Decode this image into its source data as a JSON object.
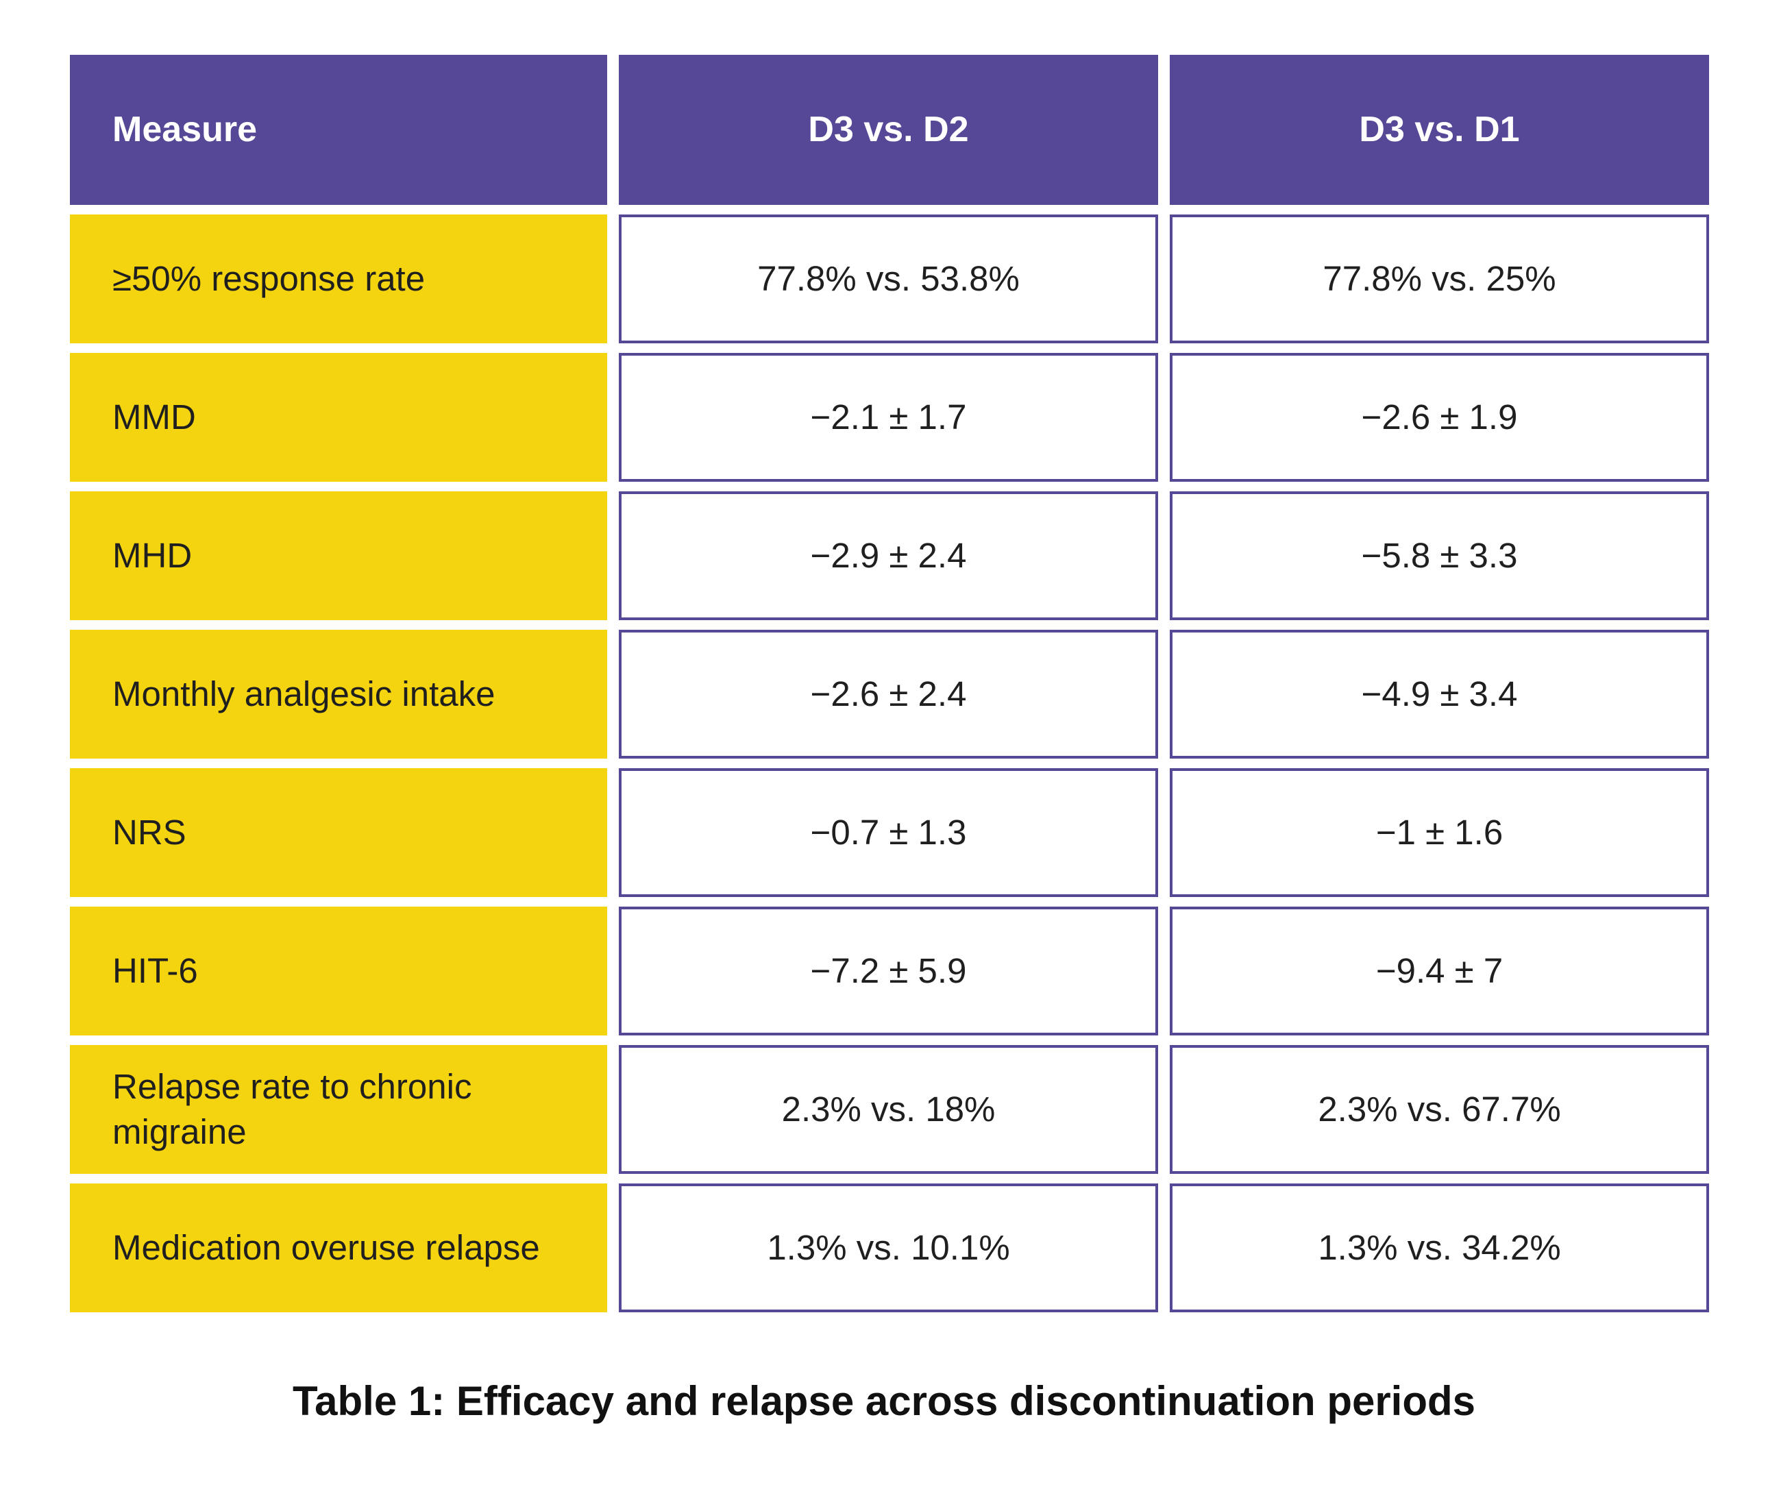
{
  "chart_data": {
    "type": "table",
    "title": "Table 1: Efficacy and relapse across discontinuation periods",
    "columns": [
      "Measure",
      "D3 vs. D2",
      "D3 vs. D1"
    ],
    "rows": [
      {
        "measure": "≥50% response rate",
        "d3_vs_d2": "77.8% vs. 53.8%",
        "d3_vs_d1": "77.8% vs. 25%"
      },
      {
        "measure": "MMD",
        "d3_vs_d2": "−2.1 ± 1.7",
        "d3_vs_d1": "−2.6 ± 1.9"
      },
      {
        "measure": "MHD",
        "d3_vs_d2": "−2.9 ± 2.4",
        "d3_vs_d1": "−5.8 ± 3.3"
      },
      {
        "measure": "Monthly analgesic intake",
        "d3_vs_d2": "−2.6 ± 2.4",
        "d3_vs_d1": "−4.9 ± 3.4"
      },
      {
        "measure": "NRS",
        "d3_vs_d2": "−0.7 ± 1.3",
        "d3_vs_d1": "−1 ± 1.6"
      },
      {
        "measure": "HIT-6",
        "d3_vs_d2": "−7.2 ± 5.9",
        "d3_vs_d1": "−9.4 ± 7"
      },
      {
        "measure": "Relapse rate to chronic migraine",
        "d3_vs_d2": "2.3% vs. 18%",
        "d3_vs_d1": "2.3% vs. 67.7%"
      },
      {
        "measure": "Medication overuse relapse",
        "d3_vs_d2": "1.3% vs. 10.1%",
        "d3_vs_d1": "1.3% vs. 34.2%"
      }
    ],
    "colors": {
      "header": "#564897",
      "label_cells": "#f4d30f",
      "value_border": "#564897"
    }
  }
}
